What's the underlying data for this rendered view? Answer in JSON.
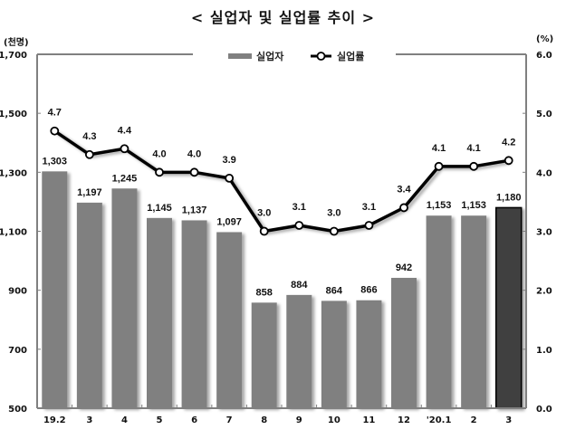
{
  "title": "< 실업자 및 실업률 추이 >",
  "left_unit": "(천명)",
  "right_unit": "(%)",
  "legend": [
    {
      "label": "실업자",
      "type": "bar",
      "color": "#808080"
    },
    {
      "label": "실업률",
      "type": "line",
      "color": "#000000"
    }
  ],
  "colors": {
    "bar": "#808080",
    "bar_highlight": "#404040",
    "line": "#000000",
    "axis": "#808080"
  },
  "chart_data": {
    "type": "bar+line",
    "title": "< 실업자 및 실업률 추이 >",
    "categories": [
      "19.2",
      "3",
      "4",
      "5",
      "6",
      "7",
      "8",
      "9",
      "10",
      "11",
      "12",
      "'20.1",
      "2",
      "3"
    ],
    "series": [
      {
        "name": "실업자",
        "type": "bar",
        "axis": "left",
        "unit": "천명",
        "values": [
          1303,
          1197,
          1245,
          1145,
          1137,
          1097,
          858,
          884,
          864,
          866,
          942,
          1153,
          1153,
          1180
        ],
        "labels": [
          "1,303",
          "1,197",
          "1,245",
          "1,145",
          "1,137",
          "1,097",
          "858",
          "884",
          "864",
          "866",
          "942",
          "1,153",
          "1,153",
          "1,180"
        ],
        "highlight_last": true
      },
      {
        "name": "실업률",
        "type": "line",
        "axis": "right",
        "unit": "%",
        "values": [
          4.7,
          4.3,
          4.4,
          4.0,
          4.0,
          3.9,
          3.0,
          3.1,
          3.0,
          3.1,
          3.4,
          4.1,
          4.1,
          4.2
        ],
        "labels": [
          "4.7",
          "4.3",
          "4.4",
          "4.0",
          "4.0",
          "3.9",
          "3.0",
          "3.1",
          "3.0",
          "3.1",
          "3.4",
          "4.1",
          "4.1",
          "4.2"
        ]
      }
    ],
    "y_left": {
      "label": "(천명)",
      "range": [
        500,
        1700
      ],
      "ticks": [
        500,
        700,
        900,
        1100,
        1300,
        1500,
        1700
      ],
      "tick_labels": [
        "500",
        "700",
        "900",
        "1,100",
        "1,300",
        "1,500",
        "1,700"
      ]
    },
    "y_right": {
      "label": "(%)",
      "range": [
        0.0,
        6.0
      ],
      "ticks": [
        0,
        1,
        2,
        3,
        4,
        5,
        6
      ],
      "tick_labels": [
        "0.0",
        "1.0",
        "2.0",
        "3.0",
        "4.0",
        "5.0",
        "6.0"
      ]
    },
    "grid": false,
    "legend_position": "top-center"
  }
}
